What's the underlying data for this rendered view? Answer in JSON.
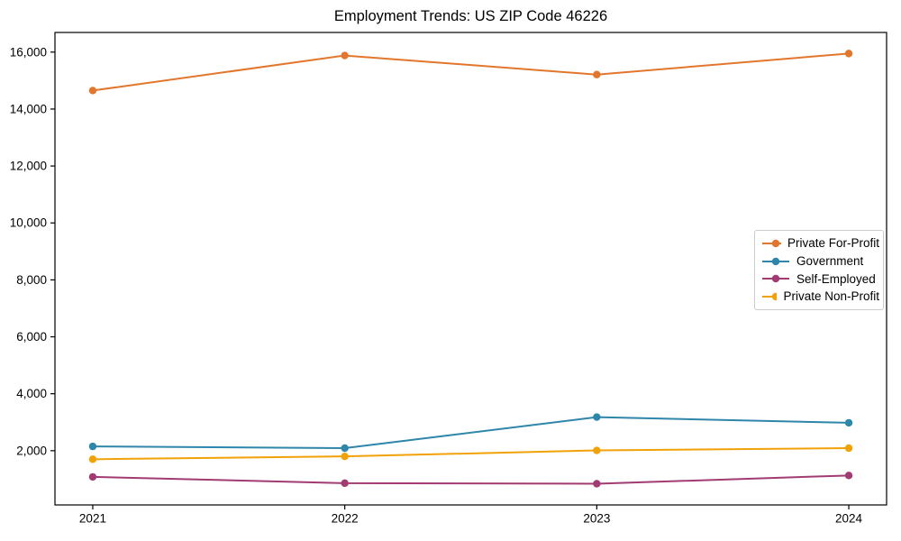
{
  "chart_data": {
    "type": "line",
    "title": "Employment Trends: US ZIP Code 46226",
    "xlabel": "",
    "ylabel": "",
    "x": [
      2021,
      2022,
      2023,
      2024
    ],
    "x_tick_labels": [
      "2021",
      "2022",
      "2023",
      "2024"
    ],
    "y_ticks": [
      2000,
      4000,
      6000,
      8000,
      10000,
      12000,
      14000,
      16000
    ],
    "y_tick_labels": [
      "2,000",
      "4,000",
      "6,000",
      "8,000",
      "10,000",
      "12,000",
      "14,000",
      "16,000"
    ],
    "xlim": [
      2020.85,
      2024.15
    ],
    "ylim": [
      95,
      16690
    ],
    "grid": false,
    "legend_position": "center right",
    "background_color": "#ffffff",
    "axis_color": "#000000",
    "legend_border_color": "#cccccc",
    "series": [
      {
        "name": "Private For-Profit",
        "color": "#E2762D",
        "values": [
          14650,
          15880,
          15210,
          15950
        ]
      },
      {
        "name": "Government",
        "color": "#2E86AB",
        "values": [
          2150,
          2090,
          3180,
          2980
        ]
      },
      {
        "name": "Self-Employed",
        "color": "#A23B72",
        "values": [
          1080,
          860,
          840,
          1130
        ]
      },
      {
        "name": "Private Non-Profit",
        "color": "#F1A208",
        "values": [
          1700,
          1800,
          2010,
          2090
        ]
      }
    ]
  }
}
